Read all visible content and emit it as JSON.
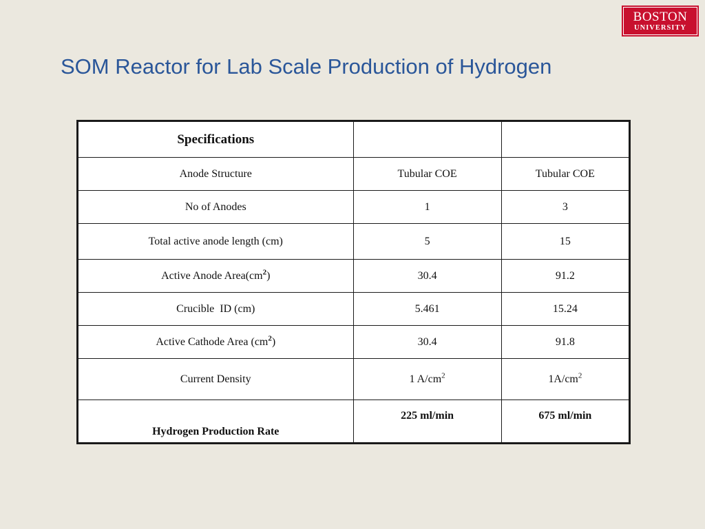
{
  "logo": {
    "line1": "BOSTON",
    "line2": "UNIVERSITY"
  },
  "title": "SOM Reactor for Lab Scale Production of Hydrogen",
  "table": {
    "header": [
      "Specifications",
      "",
      ""
    ],
    "rows": [
      {
        "label": "Anode Structure",
        "col2": "Tubular COE",
        "col3": "Tubular COE"
      },
      {
        "label": "No of Anodes",
        "col2": "1",
        "col3": "3"
      },
      {
        "label": "Total active anode length (cm)",
        "col2": "5",
        "col3": "15"
      },
      {
        "label": "Active Anode Area(cm",
        "label_sup": "2",
        "label_tail": ")",
        "col2": "30.4",
        "col3": "91.2"
      },
      {
        "label": "Crucible  ID (cm)",
        "col2": "5.461",
        "col3": "15.24"
      },
      {
        "label": "Active Cathode Area (cm",
        "label_sup": "2",
        "label_tail": ")",
        "col2": "30.4",
        "col3": "91.8"
      },
      {
        "label": "Current Density",
        "col2": "1 A/cm",
        "col2_sup": "2",
        "col3": "1A/cm",
        "col3_sup": "2"
      },
      {
        "label": "Hydrogen Production Rate",
        "col2": "225 ml/min",
        "col3": "675 ml/min"
      }
    ]
  }
}
